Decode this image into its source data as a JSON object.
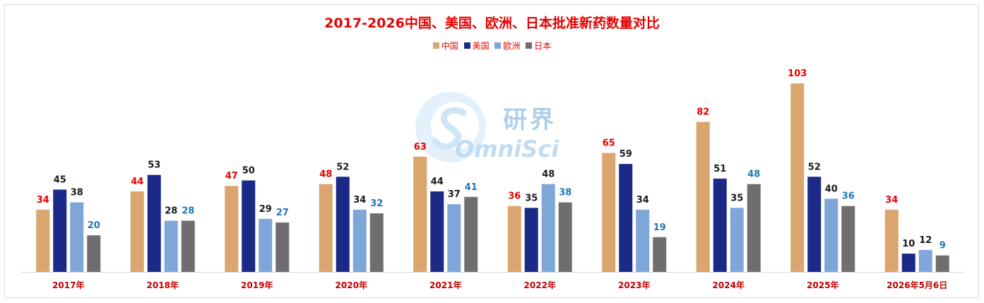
{
  "chart_data": {
    "type": "bar",
    "title": "2017-2026中国、美国、欧洲、日本批准新药数量对比",
    "categories": [
      "2017年",
      "2018年",
      "2019年",
      "2020年",
      "2021年",
      "2022年",
      "2023年",
      "2024年",
      "2025年",
      "2026年5月6日"
    ],
    "series": [
      {
        "name": "中国",
        "color": "#dba56f",
        "label_color": "#e60000",
        "values": [
          34,
          44,
          47,
          48,
          63,
          36,
          65,
          82,
          103,
          34
        ]
      },
      {
        "name": "美国",
        "color": "#1b2a86",
        "label_color": "#1a1a1a",
        "values": [
          45,
          53,
          50,
          52,
          44,
          35,
          59,
          51,
          52,
          10
        ]
      },
      {
        "name": "欧洲",
        "color": "#7fa6d8",
        "label_color": "#1a1a1a",
        "values": [
          38,
          28,
          29,
          34,
          37,
          48,
          34,
          35,
          40,
          12
        ]
      },
      {
        "name": "日本",
        "color": "#6e6e6e",
        "label_color": "#1f77b4",
        "values": [
          20,
          28,
          27,
          32,
          41,
          38,
          19,
          48,
          36,
          9
        ]
      }
    ],
    "ylim": [
      0,
      110
    ],
    "legend_position": "top-center",
    "grid": false,
    "xlabel": "",
    "ylabel": ""
  },
  "watermark": {
    "cn_text": "研界",
    "en_text": "OmniSci"
  }
}
